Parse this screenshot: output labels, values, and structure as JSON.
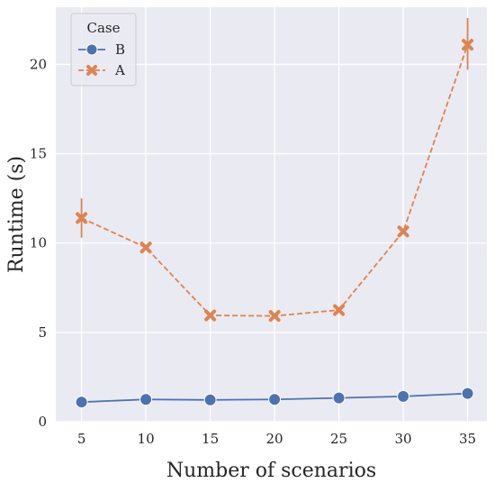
{
  "chart_data": {
    "type": "line",
    "title": "",
    "xlabel": "Number of scenarios",
    "ylabel": "Runtime (s)",
    "x": [
      5,
      10,
      15,
      20,
      25,
      30,
      35
    ],
    "xlim": [
      3,
      36.5
    ],
    "ylim": [
      0,
      23.2
    ],
    "xticks": [
      5,
      10,
      15,
      20,
      25,
      30,
      35
    ],
    "yticks": [
      0,
      5,
      10,
      15,
      20
    ],
    "grid": true,
    "legend": {
      "title": "Case",
      "placement": "top-left"
    },
    "series": [
      {
        "name": "B",
        "color": "#4c72b0",
        "marker": "circle",
        "linestyle": "solid",
        "values": [
          1.1,
          1.25,
          1.22,
          1.25,
          1.33,
          1.42,
          1.58
        ],
        "err_low": [
          1.1,
          1.25,
          1.22,
          1.25,
          1.33,
          1.42,
          1.58
        ],
        "err_high": [
          1.1,
          1.25,
          1.22,
          1.25,
          1.33,
          1.42,
          1.58
        ]
      },
      {
        "name": "A",
        "color": "#dd8452",
        "marker": "x",
        "linestyle": "dashed",
        "values": [
          11.4,
          9.75,
          5.95,
          5.92,
          6.25,
          10.65,
          21.1
        ],
        "err_low": [
          10.3,
          9.75,
          5.95,
          5.92,
          6.25,
          10.65,
          19.7
        ],
        "err_high": [
          12.5,
          9.75,
          5.95,
          5.92,
          6.25,
          10.65,
          22.6
        ]
      }
    ]
  }
}
